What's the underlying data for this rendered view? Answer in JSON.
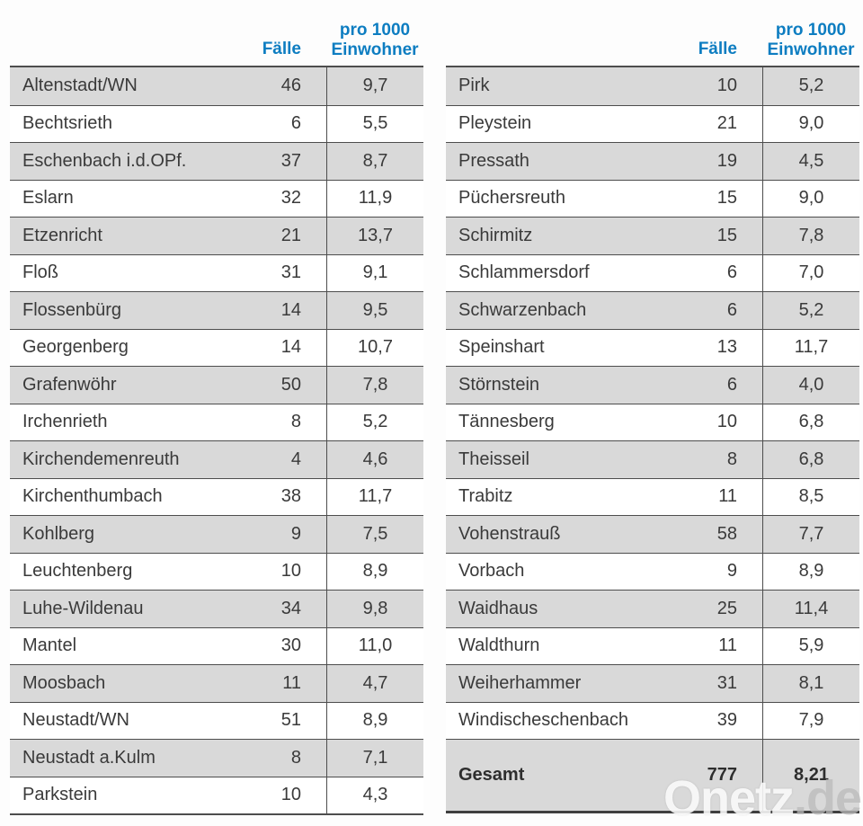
{
  "colors": {
    "accent_blue": "#0d7dc1",
    "row_grey": "#d9d9d9",
    "line_dark": "#4d4d4d",
    "text": "#3a3a3a"
  },
  "header": {
    "faelle": "Fälle",
    "pro1000_line1": "pro 1000",
    "pro1000_line2": "Einwohner"
  },
  "watermark": {
    "name": "Onetz",
    "tld": ".de"
  },
  "chart_data": [
    {
      "type": "table",
      "columns": [
        "",
        "Fälle",
        "pro 1000 Einwohner"
      ],
      "rows": [
        {
          "name": "Altenstadt/WN",
          "faelle": "46",
          "per_1000": "9,7"
        },
        {
          "name": "Bechtsrieth",
          "faelle": "6",
          "per_1000": "5,5"
        },
        {
          "name": "Eschenbach i.d.OPf.",
          "faelle": "37",
          "per_1000": "8,7"
        },
        {
          "name": "Eslarn",
          "faelle": "32",
          "per_1000": "11,9"
        },
        {
          "name": "Etzenricht",
          "faelle": "21",
          "per_1000": "13,7"
        },
        {
          "name": "Floß",
          "faelle": "31",
          "per_1000": "9,1"
        },
        {
          "name": "Flossenbürg",
          "faelle": "14",
          "per_1000": "9,5"
        },
        {
          "name": "Georgenberg",
          "faelle": "14",
          "per_1000": "10,7"
        },
        {
          "name": "Grafenwöhr",
          "faelle": "50",
          "per_1000": "7,8"
        },
        {
          "name": "Irchenrieth",
          "faelle": "8",
          "per_1000": "5,2"
        },
        {
          "name": "Kirchendemenreuth",
          "faelle": "4",
          "per_1000": "4,6"
        },
        {
          "name": "Kirchenthumbach",
          "faelle": "38",
          "per_1000": "11,7"
        },
        {
          "name": "Kohlberg",
          "faelle": "9",
          "per_1000": "7,5"
        },
        {
          "name": "Leuchtenberg",
          "faelle": "10",
          "per_1000": "8,9"
        },
        {
          "name": "Luhe-Wildenau",
          "faelle": "34",
          "per_1000": "9,8"
        },
        {
          "name": "Mantel",
          "faelle": "30",
          "per_1000": "11,0"
        },
        {
          "name": "Moosbach",
          "faelle": "11",
          "per_1000": "4,7"
        },
        {
          "name": "Neustadt/WN",
          "faelle": "51",
          "per_1000": "8,9"
        },
        {
          "name": "Neustadt a.Kulm",
          "faelle": "8",
          "per_1000": "7,1"
        },
        {
          "name": "Parkstein",
          "faelle": "10",
          "per_1000": "4,3"
        }
      ]
    },
    {
      "type": "table",
      "columns": [
        "",
        "Fälle",
        "pro 1000 Einwohner"
      ],
      "rows": [
        {
          "name": "Pirk",
          "faelle": "10",
          "per_1000": "5,2"
        },
        {
          "name": "Pleystein",
          "faelle": "21",
          "per_1000": "9,0"
        },
        {
          "name": "Pressath",
          "faelle": "19",
          "per_1000": "4,5"
        },
        {
          "name": "Püchersreuth",
          "faelle": "15",
          "per_1000": "9,0"
        },
        {
          "name": "Schirmitz",
          "faelle": "15",
          "per_1000": "7,8"
        },
        {
          "name": "Schlammersdorf",
          "faelle": "6",
          "per_1000": "7,0"
        },
        {
          "name": "Schwarzenbach",
          "faelle": "6",
          "per_1000": "5,2"
        },
        {
          "name": "Speinshart",
          "faelle": "13",
          "per_1000": "11,7"
        },
        {
          "name": "Störnstein",
          "faelle": "6",
          "per_1000": "4,0"
        },
        {
          "name": "Tännesberg",
          "faelle": "10",
          "per_1000": "6,8"
        },
        {
          "name": "Theisseil",
          "faelle": "8",
          "per_1000": "6,8"
        },
        {
          "name": "Trabitz",
          "faelle": "11",
          "per_1000": "8,5"
        },
        {
          "name": "Vohenstrauß",
          "faelle": "58",
          "per_1000": "7,7"
        },
        {
          "name": "Vorbach",
          "faelle": "9",
          "per_1000": "8,9"
        },
        {
          "name": "Waidhaus",
          "faelle": "25",
          "per_1000": "11,4"
        },
        {
          "name": "Waldthurn",
          "faelle": "11",
          "per_1000": "5,9"
        },
        {
          "name": "Weiherhammer",
          "faelle": "31",
          "per_1000": "8,1"
        },
        {
          "name": "Windischeschenbach",
          "faelle": "39",
          "per_1000": "7,9"
        }
      ],
      "total": {
        "name": "Gesamt",
        "faelle": "777",
        "per_1000": "8,21"
      }
    }
  ]
}
